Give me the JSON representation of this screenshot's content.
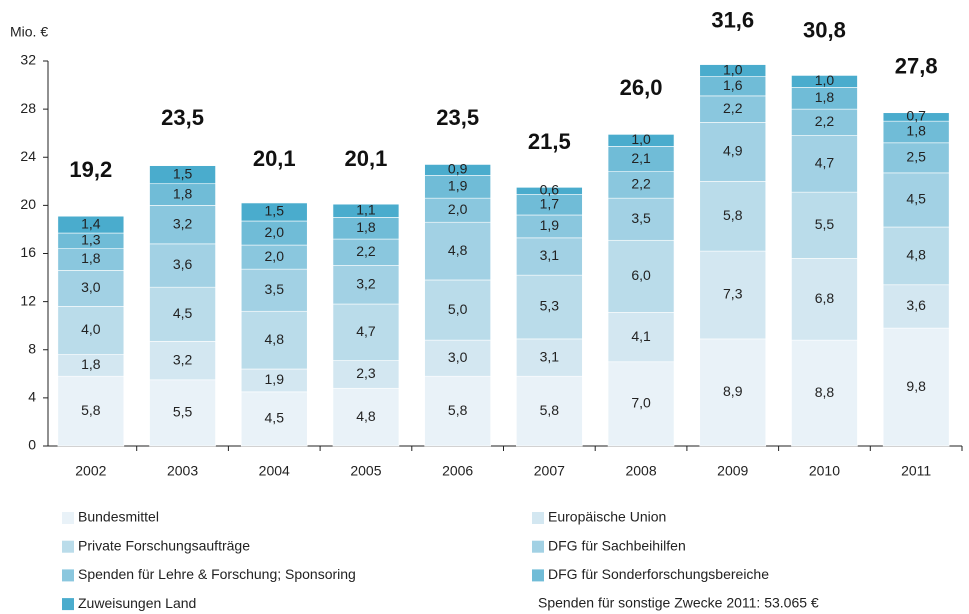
{
  "chart_data": {
    "type": "stacked_bar",
    "y_label": "Mio. €",
    "categories": [
      "2002",
      "2003",
      "2004",
      "2005",
      "2006",
      "2007",
      "2008",
      "2009",
      "2010",
      "2011"
    ],
    "ylim": [
      0,
      32
    ],
    "yticks": [
      0,
      4,
      8,
      12,
      16,
      20,
      24,
      28,
      32
    ],
    "series": [
      {
        "name": "Bundesmittel",
        "color": "#e9f2f8",
        "values": [
          5.8,
          5.5,
          4.5,
          4.8,
          5.8,
          5.8,
          7.0,
          8.9,
          8.8,
          9.8
        ],
        "value_labels": [
          "5,8",
          "5,5",
          "4,5",
          "4,8",
          "5,8",
          "5,8",
          "7,0",
          "8,9",
          "8,8",
          "9,8"
        ]
      },
      {
        "name": "Europäische Union",
        "color": "#d3e7f1",
        "values": [
          1.8,
          3.2,
          1.9,
          2.3,
          3.0,
          3.1,
          4.1,
          7.3,
          6.8,
          3.6
        ],
        "value_labels": [
          "1,8",
          "3,2",
          "1,9",
          "2,3",
          "3,0",
          "3,1",
          "4,1",
          "7,3",
          "6,8",
          "3,6"
        ]
      },
      {
        "name": "Private Forschungsaufträge",
        "color": "#badcea",
        "values": [
          4.0,
          4.5,
          4.8,
          4.7,
          5.0,
          5.3,
          6.0,
          5.8,
          5.5,
          4.8
        ],
        "value_labels": [
          "4,0",
          "4,5",
          "4,8",
          "4,7",
          "5,0",
          "5,3",
          "6,0",
          "5,8",
          "5,5",
          "4,8"
        ]
      },
      {
        "name": "DFG für Sachbeihilfen",
        "color": "#a2d1e4",
        "values": [
          3.0,
          3.6,
          3.5,
          3.2,
          4.8,
          3.1,
          3.5,
          4.9,
          4.7,
          4.5
        ],
        "value_labels": [
          "3,0",
          "3,6",
          "3,5",
          "3,2",
          "4,8",
          "3,1",
          "3,5",
          "4,9",
          "4,7",
          "4,5"
        ]
      },
      {
        "name": "Spenden für Lehre & Forschung; Sponsoring",
        "color": "#8ac7de",
        "values": [
          1.8,
          3.2,
          2.0,
          2.2,
          2.0,
          1.9,
          2.2,
          2.2,
          2.2,
          2.5
        ],
        "value_labels": [
          "1,8",
          "3,2",
          "2,0",
          "2,2",
          "2,0",
          "1,9",
          "2,2",
          "2,2",
          "2,2",
          "2,5"
        ]
      },
      {
        "name": "DFG für Sonderforschungsbereiche",
        "color": "#70bcd7",
        "values": [
          1.3,
          1.8,
          2.0,
          1.8,
          1.9,
          1.7,
          2.1,
          1.6,
          1.8,
          1.8
        ],
        "value_labels": [
          "1,3",
          "1,8",
          "2,0",
          "1,8",
          "1,9",
          "1,7",
          "2,1",
          "1,6",
          "1,8",
          "1,8"
        ]
      },
      {
        "name": "Zuweisungen Land",
        "color": "#4aaccd",
        "values": [
          1.4,
          1.5,
          1.5,
          1.1,
          0.9,
          0.6,
          1.0,
          1.0,
          1.0,
          0.7
        ],
        "value_labels": [
          "1,4",
          "1,5",
          "1,5",
          "1,1",
          "0,9",
          "0,6",
          "1,0",
          "1,0",
          "1,0",
          "0,7"
        ]
      }
    ],
    "totals": [
      19.2,
      23.5,
      20.1,
      20.1,
      23.5,
      21.5,
      26.0,
      31.6,
      30.8,
      27.8
    ],
    "total_labels": [
      "19,2",
      "23,5",
      "20,1",
      "20,1",
      "23,5",
      "21,5",
      "26,0",
      "31,6",
      "30,8",
      "27,8"
    ],
    "annotation": "Spenden für sonstige Zwecke 2011: 53.065  €"
  }
}
